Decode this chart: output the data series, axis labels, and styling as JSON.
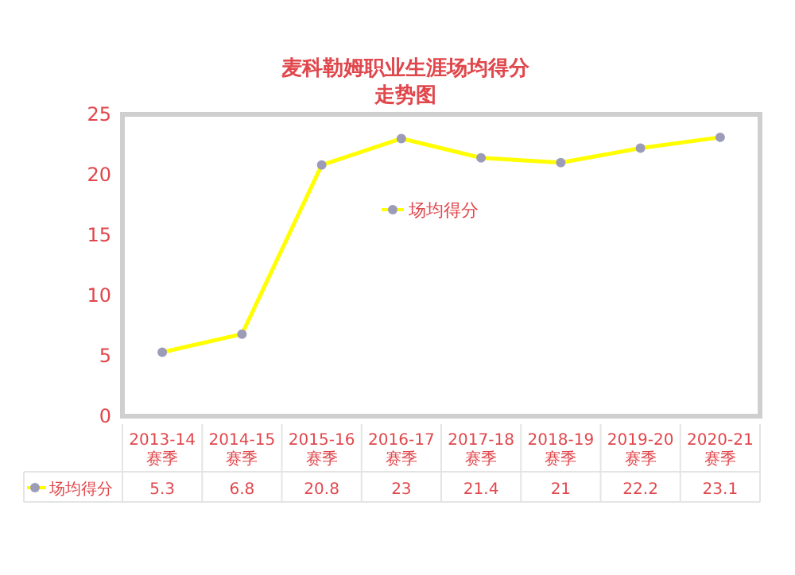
{
  "chart_data": {
    "type": "line",
    "title": "麦科勒姆职业生涯场均得分",
    "subtitle": "走势图",
    "categories": [
      "2013-14\n赛季",
      "2014-15\n赛季",
      "2015-16\n赛季",
      "2016-17\n赛季",
      "2017-18\n赛季",
      "2018-19\n赛季",
      "2019-20\n赛季",
      "2020-21\n赛季"
    ],
    "series": [
      {
        "name": "场均得分",
        "color": "#ffff00",
        "values": [
          5.3,
          6.8,
          20.8,
          23,
          21.4,
          21,
          22.2,
          23.1
        ]
      }
    ],
    "ylim": [
      0,
      25
    ],
    "yticks": [
      0,
      5,
      10,
      15,
      20,
      25
    ],
    "marker": "circle",
    "line_style": "solid",
    "legend": "center",
    "data_labels": true,
    "grid": false
  }
}
